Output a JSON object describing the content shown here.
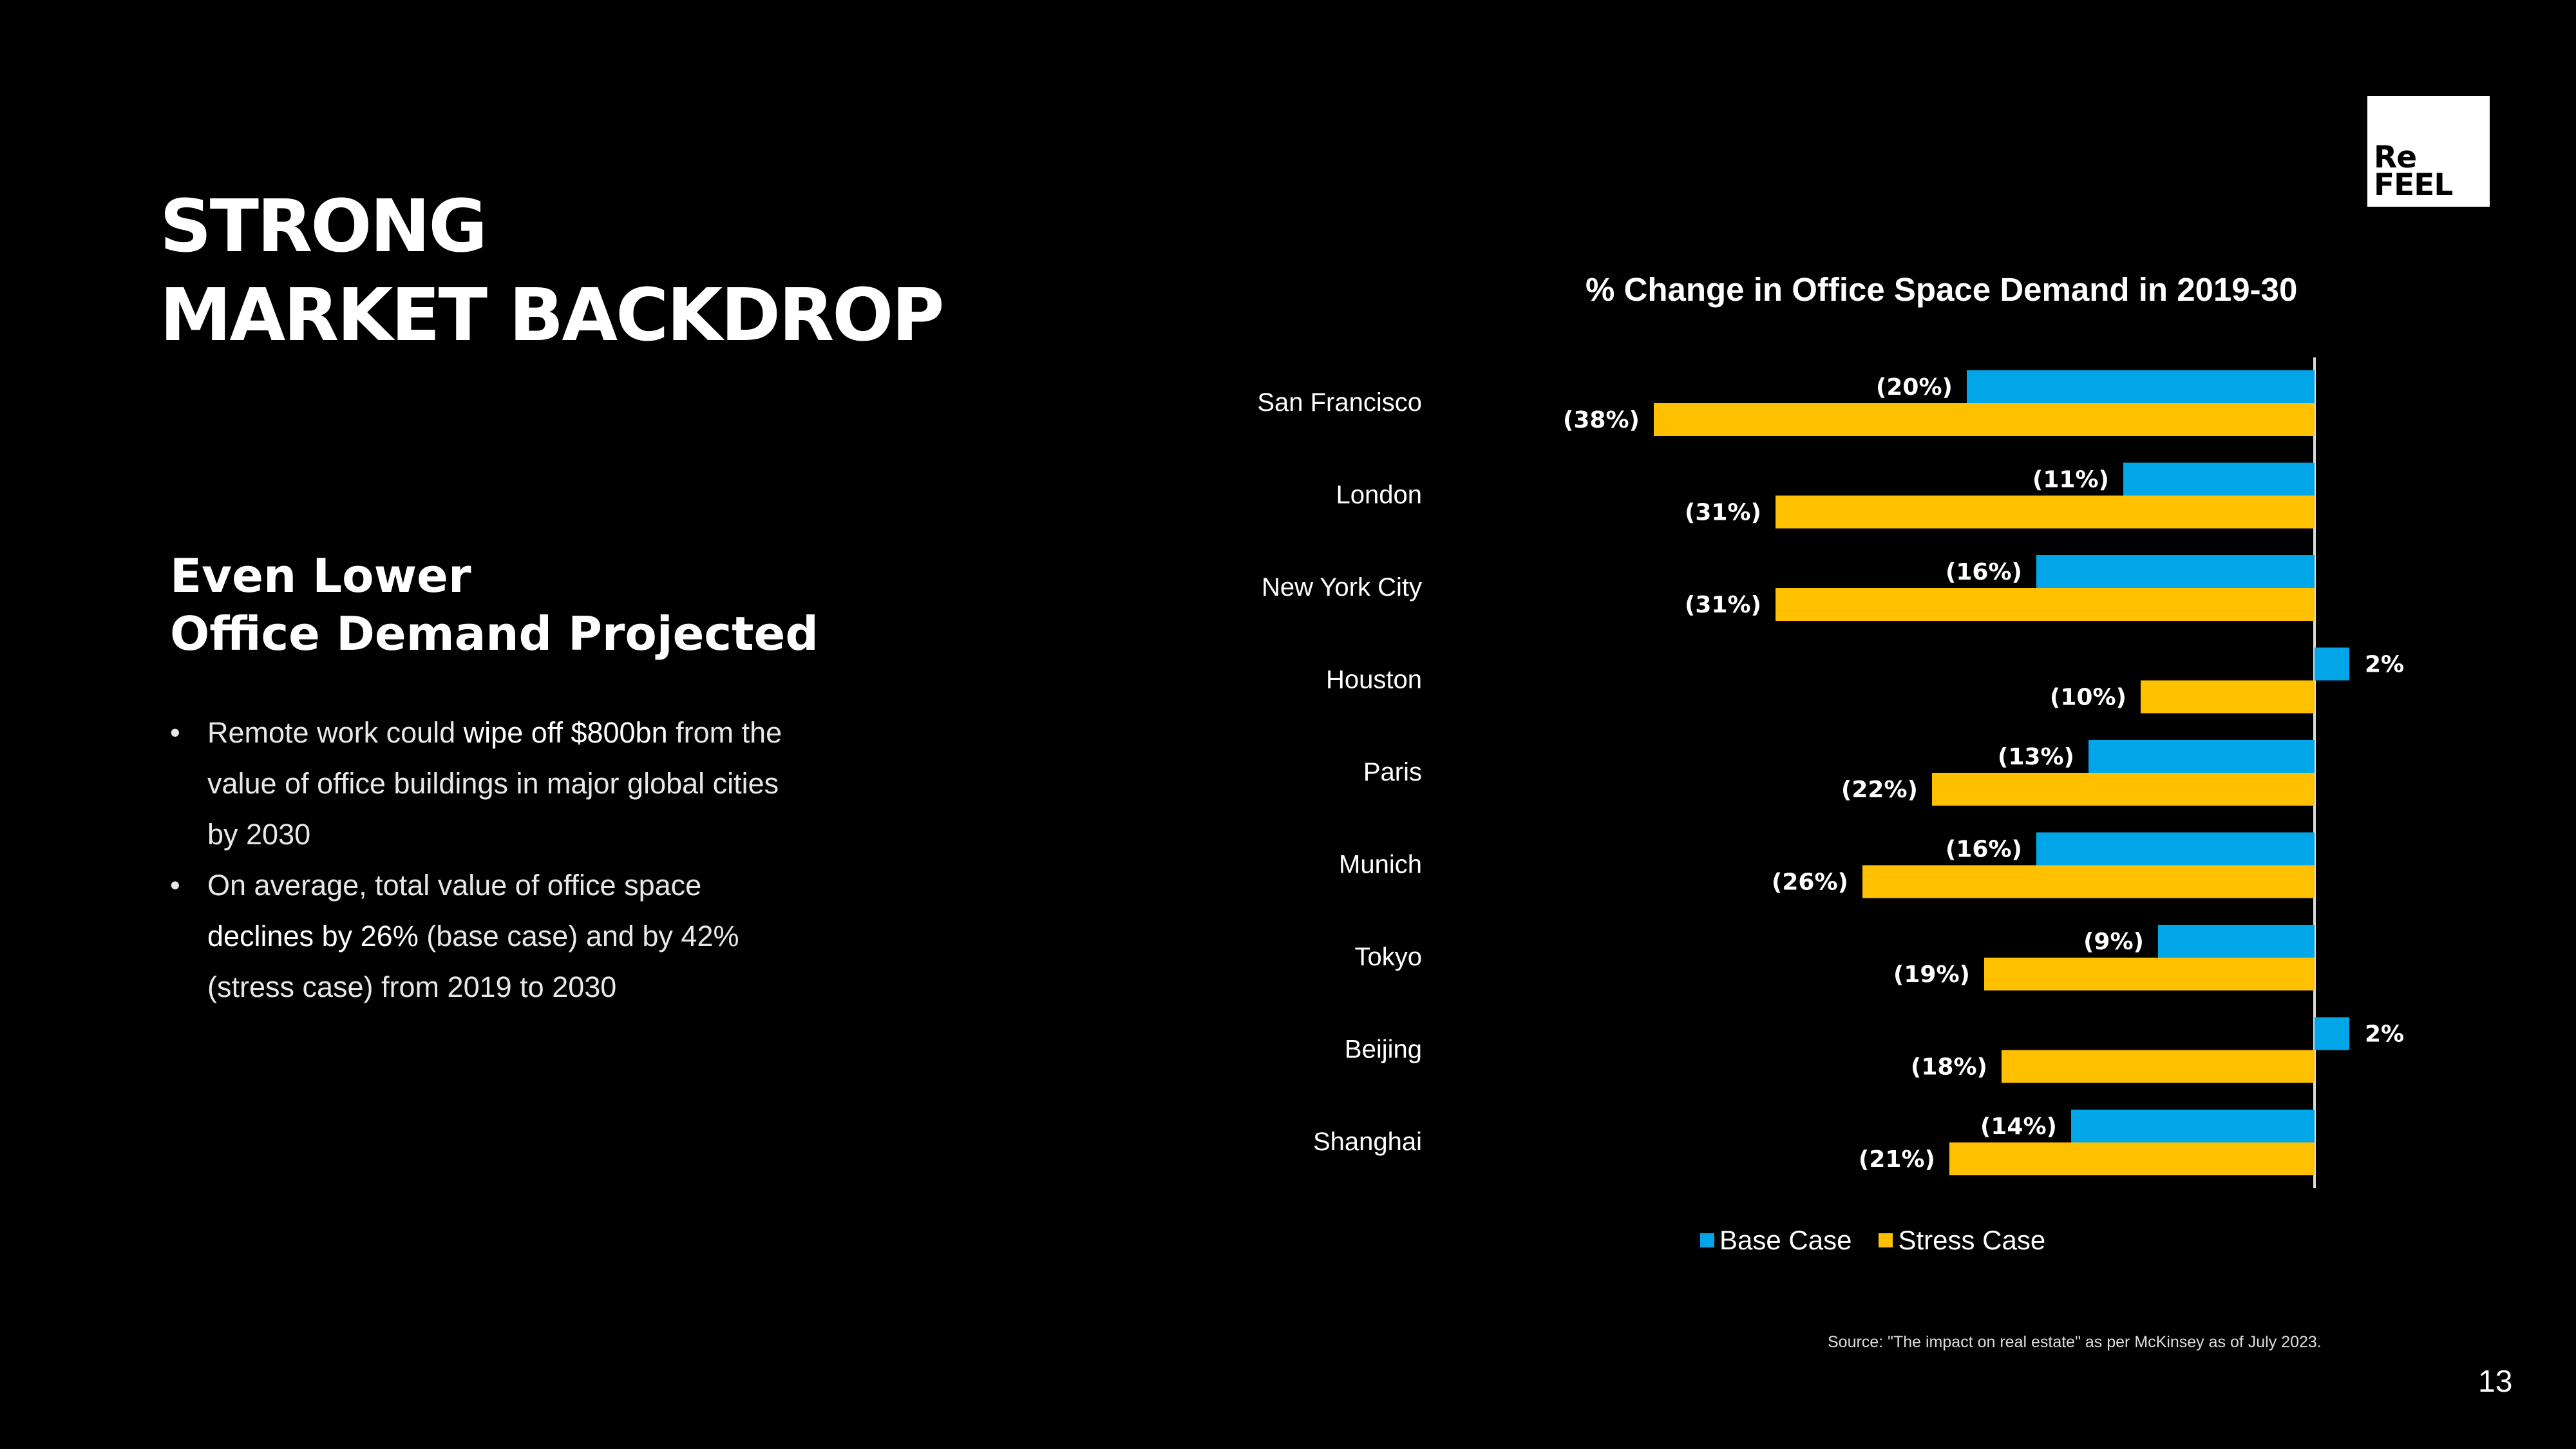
{
  "slide": {
    "title_line1": "STRONG",
    "title_line2": "MARKET BACKDROP",
    "logo_line1": "Re",
    "logo_line2": "FEEL",
    "subtitle_line1": "Even Lower",
    "subtitle_line2": "Office Demand Projected",
    "bullets": [
      {
        "pre": "Remote work could ",
        "highlight": "wipe off $800bn",
        "post": " from the value of office buildings in major global cities by 2030"
      },
      {
        "pre": "On average, total value of office space ",
        "highlight": "declines by 26%",
        "post": " (base case) and by 42% (stress case) from 2019 to 2030"
      }
    ],
    "bullet_marker": "•",
    "source": "Source: \"The impact on real estate\" as per McKinsey as of July 2023.",
    "page_number": "13"
  },
  "chart_data": {
    "type": "bar",
    "orientation": "horizontal",
    "title": "% Change in Office Space Demand in 2019-30",
    "categories": [
      "San Francisco",
      "London",
      "New York City",
      "Houston",
      "Paris",
      "Munich",
      "Tokyo",
      "Beijing",
      "Shanghai"
    ],
    "series": [
      {
        "name": "Base Case",
        "color": "#00A6E8",
        "values": [
          -20,
          -11,
          -16,
          2,
          -13,
          -16,
          -9,
          2,
          -14
        ],
        "labels": [
          "(20%)",
          "(11%)",
          "(16%)",
          "2%",
          "(13%)",
          "(16%)",
          "(9%)",
          "2%",
          "(14%)"
        ]
      },
      {
        "name": "Stress Case",
        "color": "#FFC000",
        "values": [
          -38,
          -31,
          -31,
          -10,
          -22,
          -26,
          -19,
          -18,
          -21
        ],
        "labels": [
          "(38%)",
          "(31%)",
          "(31%)",
          "(10%)",
          "(22%)",
          "(26%)",
          "(19%)",
          "(18%)",
          "(21%)"
        ]
      }
    ],
    "xlim": [
      -38,
      2
    ],
    "grid": false,
    "legend": "bottom"
  }
}
